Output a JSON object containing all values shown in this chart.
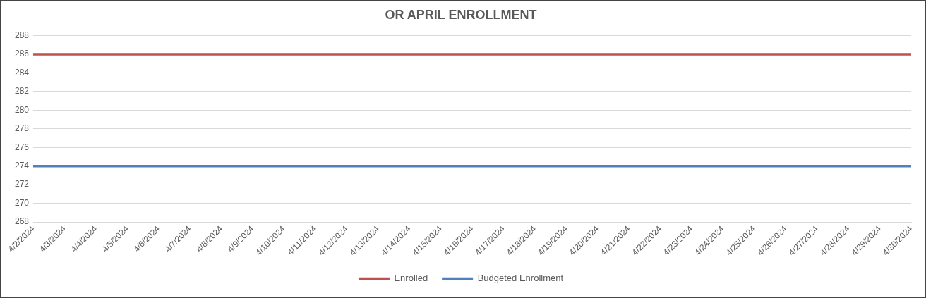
{
  "chart_data": {
    "type": "line",
    "title": "OR APRIL ENROLLMENT",
    "categories": [
      "4/2/2024",
      "4/3/2024",
      "4/4/2024",
      "4/5/2024",
      "4/6/2024",
      "4/7/2024",
      "4/8/2024",
      "4/9/2024",
      "4/10/2024",
      "4/11/2024",
      "4/12/2024",
      "4/13/2024",
      "4/14/2024",
      "4/15/2024",
      "4/16/2024",
      "4/17/2024",
      "4/18/2024",
      "4/19/2024",
      "4/20/2024",
      "4/21/2024",
      "4/22/2024",
      "4/23/2024",
      "4/24/2024",
      "4/25/2024",
      "4/26/2024",
      "4/27/2024",
      "4/28/2024",
      "4/29/2024",
      "4/30/2024"
    ],
    "series": [
      {
        "name": "Enrolled",
        "color": "#c0504d",
        "values": [
          286,
          286,
          286,
          286,
          286,
          286,
          286,
          286,
          286,
          286,
          286,
          286,
          286,
          286,
          286,
          286,
          286,
          286,
          286,
          286,
          286,
          286,
          286,
          286,
          286,
          286,
          286,
          286,
          286
        ]
      },
      {
        "name": "Budgeted Enrollment",
        "color": "#4f81bd",
        "values": [
          274,
          274,
          274,
          274,
          274,
          274,
          274,
          274,
          274,
          274,
          274,
          274,
          274,
          274,
          274,
          274,
          274,
          274,
          274,
          274,
          274,
          274,
          274,
          274,
          274,
          274,
          274,
          274,
          274
        ]
      }
    ],
    "ylim": [
      268,
      288
    ],
    "yticks": [
      268,
      270,
      272,
      274,
      276,
      278,
      280,
      282,
      284,
      286,
      288
    ],
    "grid": "y",
    "legend": "bottom",
    "marker": "none",
    "line_style": "solid"
  }
}
